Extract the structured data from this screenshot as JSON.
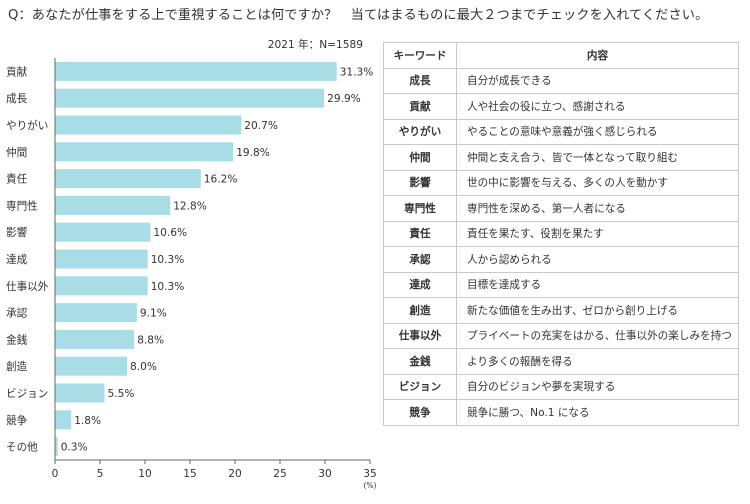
{
  "question": "Q：あなたが仕事をする上で重視することは何ですか？　当てはまるものに最大２つまでチェックを入れてください。",
  "chart_data": {
    "type": "bar",
    "orientation": "horizontal",
    "subtitle": "2021 年：N=1589",
    "categories": [
      "貢献",
      "成長",
      "やりがい",
      "仲間",
      "責任",
      "専門性",
      "影響",
      "達成",
      "仕事以外",
      "承認",
      "金銭",
      "創造",
      "ビジョン",
      "競争",
      "その他"
    ],
    "values": [
      31.3,
      29.9,
      20.7,
      19.8,
      16.2,
      12.8,
      10.6,
      10.3,
      10.3,
      9.1,
      8.8,
      8.0,
      5.5,
      1.8,
      0.3
    ],
    "value_labels": [
      "31.3%",
      "29.9%",
      "20.7%",
      "19.8%",
      "16.2%",
      "12.8%",
      "10.6%",
      "10.3%",
      "10.3%",
      "9.1%",
      "8.8%",
      "8.0%",
      "5.5%",
      "1.8%",
      "0.3%"
    ],
    "xlim": [
      0,
      35
    ],
    "xticks": [
      0,
      5,
      10,
      15,
      20,
      25,
      30,
      35
    ],
    "xunit": "(%)",
    "bar_color": "#a8dde5",
    "grid": false
  },
  "table": {
    "headers": [
      "キーワード",
      "内容"
    ],
    "rows": [
      [
        "成長",
        "自分が成長できる"
      ],
      [
        "貢献",
        "人や社会の役に立つ、感謝される"
      ],
      [
        "やりがい",
        "やることの意味や意義が強く感じられる"
      ],
      [
        "仲間",
        "仲間と支え合う、皆で一体となって取り組む"
      ],
      [
        "影響",
        "世の中に影響を与える、多くの人を動かす"
      ],
      [
        "専門性",
        "専門性を深める、第一人者になる"
      ],
      [
        "責任",
        "責任を果たす、役割を果たす"
      ],
      [
        "承認",
        "人から認められる"
      ],
      [
        "達成",
        "目標を達成する"
      ],
      [
        "創造",
        "新たな価値を生み出す、ゼロから創り上げる"
      ],
      [
        "仕事以外",
        "プライベートの充実をはかる、仕事以外の楽しみを持つ"
      ],
      [
        "金銭",
        "より多くの報酬を得る"
      ],
      [
        "ビジョン",
        "自分のビジョンや夢を実現する"
      ],
      [
        "競争",
        "競争に勝つ、No.1 になる"
      ]
    ]
  }
}
